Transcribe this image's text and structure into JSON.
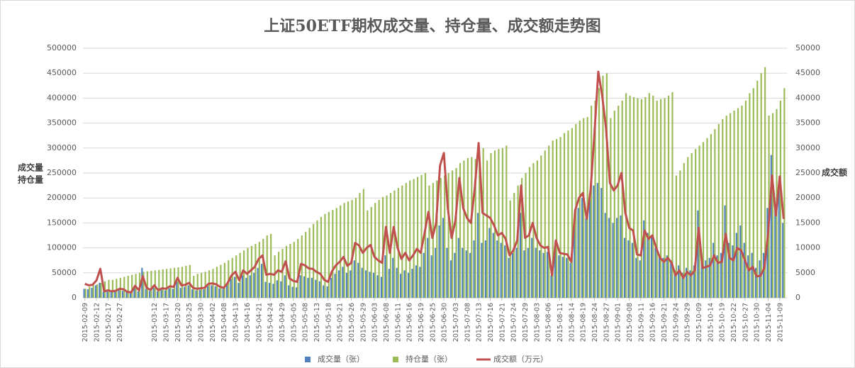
{
  "chart_data": {
    "type": "bar",
    "title": "上证50ETF期权成交量、持仓量、成交额走势图",
    "y_label": [
      "成交量",
      "持仓量"
    ],
    "y2_label": "成交额",
    "legend": "bottom",
    "grid": true,
    "ylim": [
      0,
      500000
    ],
    "yticks": [
      0,
      50000,
      100000,
      150000,
      200000,
      250000,
      300000,
      350000,
      400000,
      450000,
      500000
    ],
    "y2lim": [
      0,
      50000
    ],
    "y2ticks": [
      0,
      5000,
      10000,
      15000,
      20000,
      25000,
      30000,
      35000,
      40000,
      45000,
      50000
    ],
    "categories": [
      "2015-02-09",
      null,
      null,
      "2015-02-12",
      null,
      null,
      "2015-02-17",
      null,
      null,
      "2015-02-27",
      null,
      null,
      null,
      null,
      null,
      null,
      null,
      null,
      "2015-03-12",
      null,
      null,
      "2015-03-17",
      null,
      null,
      "2015-03-20",
      null,
      null,
      "2015-03-25",
      null,
      null,
      "2015-03-30",
      null,
      null,
      "2015-04-02",
      null,
      null,
      "2015-04-08",
      null,
      null,
      "2015-04-13",
      null,
      null,
      "2015-04-16",
      null,
      null,
      "2015-04-21",
      null,
      null,
      "2015-04-24",
      null,
      null,
      "2015-04-29",
      null,
      null,
      "2015-05-05",
      null,
      null,
      "2015-05-08",
      null,
      null,
      "2015-05-13",
      null,
      null,
      "2015-05-18",
      null,
      null,
      "2015-05-21",
      null,
      null,
      "2015-05-26",
      null,
      null,
      "2015-05-29",
      null,
      null,
      "2015-06-03",
      null,
      null,
      "2015-06-08",
      null,
      null,
      "2015-06-11",
      null,
      null,
      "2015-06-16",
      null,
      null,
      "2015-06-19",
      null,
      null,
      "2015-06-25",
      null,
      null,
      "2015-06-30",
      null,
      null,
      "2015-07-03",
      null,
      null,
      "2015-07-08",
      null,
      null,
      "2015-07-13",
      null,
      null,
      "2015-07-16",
      null,
      null,
      "2015-07-21",
      null,
      null,
      "2015-07-24",
      null,
      null,
      "2015-07-29",
      null,
      null,
      "2015-08-03",
      null,
      null,
      "2015-08-06",
      null,
      null,
      "2015-08-11",
      null,
      null,
      "2015-08-14",
      null,
      null,
      "2015-08-19",
      null,
      null,
      "2015-08-24",
      null,
      null,
      "2015-08-27",
      null,
      null,
      "2015-09-01",
      null,
      null,
      "2015-09-08",
      null,
      null,
      "2015-09-11",
      null,
      null,
      "2015-09-16",
      null,
      null,
      "2015-09-21",
      null,
      null,
      "2015-09-24",
      null,
      null,
      "2015-09-29",
      null,
      null,
      "2015-10-09",
      null,
      null,
      "2015-10-14",
      null,
      null,
      "2015-10-19",
      null,
      null,
      "2015-10-22",
      null,
      null,
      "2015-10-27",
      null,
      null,
      "2015-10-30",
      null,
      null,
      "2015-11-04",
      null,
      null,
      "2015-11-09",
      null
    ],
    "series": [
      {
        "name": "成交量（张）",
        "color": "#4f81bd",
        "values": [
          18000,
          17000,
          20000,
          25000,
          30000,
          12000,
          13000,
          12000,
          13000,
          15000,
          14000,
          11000,
          10000,
          20000,
          13000,
          60000,
          18000,
          14000,
          20000,
          13000,
          16000,
          15000,
          19000,
          18000,
          32000,
          20000,
          22000,
          25000,
          17000,
          15000,
          16000,
          17000,
          23000,
          25000,
          23000,
          19000,
          18000,
          26000,
          38000,
          42000,
          30000,
          45000,
          40000,
          45000,
          50000,
          60000,
          68000,
          32000,
          30000,
          28000,
          35000,
          33000,
          45000,
          25000,
          22000,
          21000,
          45000,
          43000,
          40000,
          40000,
          36000,
          33000,
          25000,
          23000,
          40000,
          48000,
          55000,
          62000,
          50000,
          55000,
          75000,
          70000,
          60000,
          55000,
          52000,
          50000,
          45000,
          42000,
          85000,
          58000,
          80000,
          60000,
          48000,
          55000,
          50000,
          58000,
          65000,
          62000,
          90000,
          120000,
          85000,
          100000,
          145000,
          160000,
          100000,
          75000,
          90000,
          120000,
          100000,
          95000,
          90000,
          115000,
          170000,
          110000,
          115000,
          140000,
          130000,
          115000,
          110000,
          105000,
          80000,
          90000,
          100000,
          170000,
          95000,
          100000,
          120000,
          100000,
          95000,
          90000,
          92000,
          45000,
          100000,
          85000,
          82000,
          80000,
          70000,
          150000,
          180000,
          200000,
          160000,
          210000,
          225000,
          230000,
          220000,
          170000,
          160000,
          150000,
          160000,
          165000,
          120000,
          115000,
          110000,
          80000,
          75000,
          155000,
          130000,
          125000,
          100000,
          85000,
          80000,
          85000,
          75000,
          55000,
          65000,
          50000,
          60000,
          55000,
          65000,
          175000,
          70000,
          75000,
          80000,
          110000,
          85000,
          90000,
          185000,
          110000,
          105000,
          130000,
          145000,
          110000,
          85000,
          90000,
          60000,
          75000,
          90000,
          180000,
          286000,
          180000,
          225000,
          150000
        ]
      },
      {
        "name": "持仓量（张）",
        "color": "#9bbb59",
        "values": [
          18000,
          22000,
          25000,
          27000,
          30000,
          33000,
          36000,
          36000,
          38000,
          40000,
          42000,
          44000,
          46000,
          48000,
          50000,
          52000,
          53000,
          54000,
          55000,
          56000,
          57000,
          58000,
          59000,
          60000,
          61000,
          62000,
          64000,
          66000,
          44000,
          48000,
          50000,
          52000,
          55000,
          58000,
          62000,
          66000,
          70000,
          75000,
          80000,
          85000,
          90000,
          95000,
          100000,
          104000,
          108000,
          112000,
          118000,
          125000,
          128000,
          85000,
          92000,
          98000,
          104000,
          108000,
          112000,
          118000,
          125000,
          132000,
          140000,
          148000,
          155000,
          162000,
          168000,
          172000,
          176000,
          180000,
          185000,
          190000,
          193000,
          196000,
          200000,
          210000,
          218000,
          175000,
          182000,
          190000,
          196000,
          202000,
          205000,
          210000,
          215000,
          220000,
          225000,
          230000,
          235000,
          238000,
          242000,
          246000,
          250000,
          225000,
          230000,
          235000,
          240000,
          245000,
          250000,
          255000,
          260000,
          270000,
          275000,
          280000,
          282000,
          278000,
          295000,
          300000,
          275000,
          290000,
          295000,
          298000,
          300000,
          305000,
          195000,
          210000,
          225000,
          240000,
          250000,
          262000,
          270000,
          275000,
          285000,
          295000,
          305000,
          315000,
          318000,
          322000,
          330000,
          335000,
          340000,
          348000,
          355000,
          360000,
          362000,
          385000,
          395000,
          420000,
          445000,
          450000,
          360000,
          375000,
          385000,
          395000,
          410000,
          405000,
          402000,
          400000,
          398000,
          402000,
          410000,
          405000,
          395000,
          398000,
          400000,
          405000,
          412000,
          245000,
          255000,
          270000,
          282000,
          290000,
          298000,
          305000,
          312000,
          320000,
          328000,
          338000,
          348000,
          358000,
          365000,
          370000,
          375000,
          380000,
          385000,
          395000,
          410000,
          420000,
          435000,
          450000,
          462000,
          365000,
          370000,
          378000,
          395000,
          420000
        ]
      },
      {
        "name": "成交额（万元）",
        "color": "#c0504d",
        "type": "line",
        "axis": "y2",
        "values": [
          2800,
          2500,
          2600,
          3500,
          5800,
          1300,
          1500,
          1300,
          1400,
          1800,
          1700,
          1200,
          1100,
          2400,
          1500,
          4300,
          2000,
          1600,
          2500,
          1500,
          1900,
          1800,
          2300,
          2200,
          4000,
          2500,
          2600,
          3000,
          2000,
          1800,
          1900,
          2000,
          2800,
          2900,
          2700,
          2200,
          2000,
          3000,
          4500,
          5200,
          3500,
          5500,
          4800,
          5500,
          6200,
          7800,
          8500,
          4600,
          4800,
          4600,
          5500,
          5200,
          7300,
          3900,
          3400,
          3200,
          6800,
          6500,
          5900,
          5800,
          5200,
          4800,
          3600,
          3200,
          5300,
          6500,
          7200,
          8200,
          6400,
          7000,
          11000,
          10500,
          9000,
          10000,
          10600,
          8200,
          7500,
          7000,
          14200,
          9000,
          14200,
          10000,
          7800,
          9000,
          7500,
          8500,
          9800,
          9000,
          13000,
          17200,
          12000,
          15000,
          26500,
          29000,
          18000,
          12000,
          15500,
          24000,
          18000,
          16000,
          15000,
          22000,
          31000,
          17000,
          16500,
          16000,
          14500,
          12500,
          13000,
          11800,
          8500,
          9500,
          11500,
          22500,
          12000,
          12500,
          15000,
          12000,
          10500,
          10000,
          10200,
          4500,
          11500,
          9000,
          8800,
          8700,
          7200,
          17500,
          20000,
          21000,
          15800,
          21500,
          33000,
          45300,
          40500,
          34000,
          23000,
          21500,
          22500,
          25000,
          17000,
          14000,
          13500,
          8700,
          8500,
          13500,
          11800,
          12500,
          10000,
          8000,
          7200,
          8000,
          7000,
          4500,
          5500,
          4000,
          5200,
          4500,
          5500,
          14000,
          6000,
          6200,
          6500,
          8500,
          7000,
          7200,
          12800,
          8000,
          7500,
          10000,
          9500,
          7500,
          5500,
          6200,
          4300,
          4400,
          6000,
          13000,
          24500,
          16500,
          24300,
          15800
        ]
      }
    ]
  }
}
